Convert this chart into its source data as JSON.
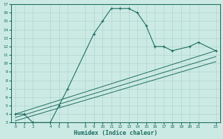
{
  "xlabel": "Humidex (Indice chaleur)",
  "bg_color": "#cceae4",
  "grid_color": "#b0d4cc",
  "line_color": "#1a6b5e",
  "curve1_x": [
    0,
    1,
    2,
    4,
    5,
    6,
    9,
    10,
    11,
    12,
    13,
    14,
    15,
    16,
    17,
    18,
    20,
    21,
    23
  ],
  "curve1_y": [
    4,
    4,
    3,
    3,
    5,
    7,
    13.5,
    15,
    16.5,
    16.5,
    16.5,
    16,
    14.5,
    12,
    12,
    11.5,
    12,
    12.5,
    11.5
  ],
  "line1_x": [
    0,
    23
  ],
  "line1_y": [
    4.0,
    11.5
  ],
  "line2_x": [
    0,
    23
  ],
  "line2_y": [
    3.6,
    10.8
  ],
  "line3_x": [
    0,
    23
  ],
  "line3_y": [
    3.2,
    10.2
  ],
  "xlim": [
    -0.5,
    23.5
  ],
  "ylim": [
    3,
    17
  ],
  "xticks": [
    0,
    1,
    2,
    4,
    5,
    6,
    8,
    9,
    10,
    11,
    12,
    13,
    14,
    15,
    16,
    17,
    18,
    19,
    20,
    21,
    23
  ],
  "yticks": [
    3,
    4,
    5,
    6,
    7,
    8,
    9,
    10,
    11,
    12,
    13,
    14,
    15,
    16,
    17
  ],
  "tick_fontsize": 4.5,
  "xlabel_fontsize": 6.0,
  "figsize": [
    3.2,
    2.0
  ],
  "dpi": 100
}
